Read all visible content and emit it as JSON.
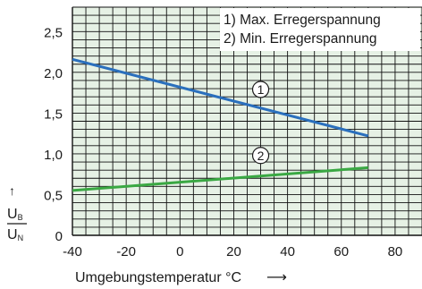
{
  "chart_data": {
    "type": "line",
    "xlabel": "Umgebungstemperatur °C",
    "xlabel_arrow": "⟶",
    "ylabel": {
      "arrow": "↑",
      "numerator": "U",
      "numerator_sub": "B",
      "denominator": "U",
      "denominator_sub": "N"
    },
    "xlim": [
      -40,
      90
    ],
    "ylim": [
      0,
      2.8
    ],
    "xticks": [
      -40,
      -20,
      0,
      20,
      40,
      60,
      80
    ],
    "xtick_labels": [
      "-40",
      "-20",
      "0",
      "20",
      "40",
      "60",
      "80"
    ],
    "yticks": [
      0,
      0.5,
      1.0,
      1.5,
      2.0,
      2.5
    ],
    "ytick_labels": [
      "0",
      "0,5",
      "1,0",
      "1,5",
      "2,0",
      "2,5"
    ],
    "grid": true,
    "grid_minor": {
      "x_step": 5,
      "y_step": 0.1
    },
    "legend": {
      "placement": "top-right",
      "entries": [
        "1) Max. Erregerspannung",
        "2) Min. Erregerspannung"
      ]
    },
    "series": [
      {
        "name": "Max. Erregerspannung",
        "marker_label": "1",
        "x": [
          -40,
          70
        ],
        "y": [
          2.16,
          1.22
        ],
        "color": "#2a6fbd",
        "label_at": [
          30,
          1.79
        ]
      },
      {
        "name": "Min. Erregerspannung",
        "marker_label": "2",
        "x": [
          -40,
          70
        ],
        "y": [
          0.55,
          0.83
        ],
        "color": "#3aa843",
        "label_at": [
          30,
          0.98
        ]
      }
    ],
    "colors": {
      "plot_bg": "#e6f1e5",
      "grid": "#111111"
    }
  }
}
